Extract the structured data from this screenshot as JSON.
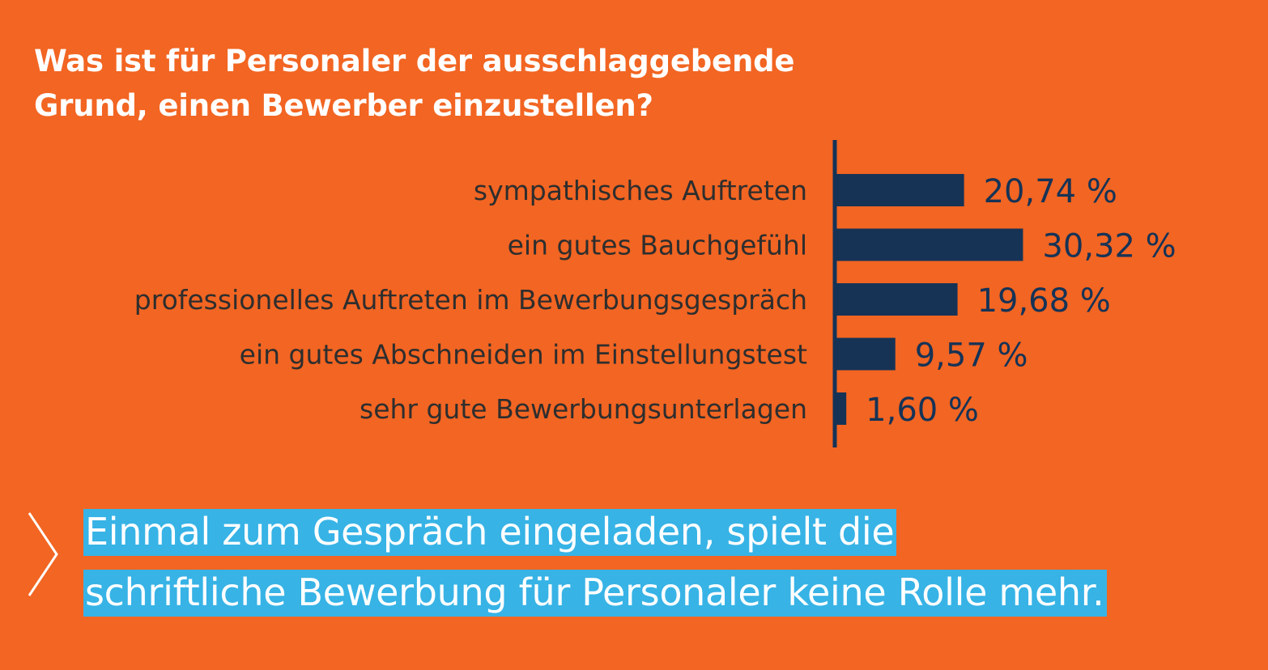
{
  "title": {
    "line1": "Was ist für Personaler der ausschlaggebende",
    "line2": "Grund, einen Bewerber einzustellen?"
  },
  "chart_data": {
    "type": "bar",
    "orientation": "horizontal",
    "categories": [
      "sympathisches Auftreten",
      "ein gutes Bauchgefühl",
      "professionelles Auftreten im Bewerbungsgespräch",
      "ein gutes Abschneiden im Einstellungstest",
      "sehr gute Bewerbungsunterlagen"
    ],
    "values": [
      20.74,
      30.32,
      19.68,
      9.57,
      1.6
    ],
    "value_labels": [
      "20,74 %",
      "30,32 %",
      "19,68 %",
      "9,57 %",
      "1,60 %"
    ],
    "unit": "%",
    "xlim": [
      0,
      100
    ],
    "grid": false,
    "legend": "none",
    "colors": {
      "bar": "#163356",
      "axis": "#163356",
      "value_label": "#163356",
      "category_label": "#2E2E2E"
    }
  },
  "callout": {
    "line1": "Einmal zum Gespräch eingeladen, spielt die",
    "line2": "schriftliche Bewerbung für Personaler keine Rolle mehr.",
    "icon": "chevron-right-icon",
    "highlight_color": "#37B3E6"
  },
  "colors": {
    "background": "#F26522",
    "title": "#FFFFFF"
  }
}
